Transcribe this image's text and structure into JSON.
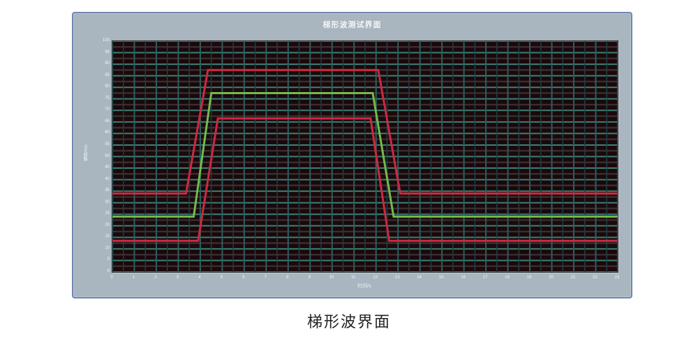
{
  "page": {
    "caption": "梯形波界面"
  },
  "panel": {
    "title": "梯形波测试界面"
  },
  "chart_data": {
    "type": "line",
    "title": "梯形波测试界面",
    "xlabel": "时间/s",
    "ylabel": "幅值/mm",
    "xlim": [
      0,
      23
    ],
    "ylim": [
      0,
      100
    ],
    "grid": true,
    "legend": "none",
    "colors": {
      "plot_background": "#1a090b",
      "grid_horizontal_major": "#3d7f79",
      "grid_vertical_major": "#2a615e",
      "grid_vertical_minor": "#1c4143",
      "grid_horizontal_mid": "#3a2d31",
      "limit_line": "#cb2943",
      "nominal_line": "#74ba4c",
      "panel_background": "#a9b5bf",
      "panel_border": "#7087b2"
    },
    "x_tick_labels": [
      "0",
      "1",
      "2",
      "3",
      "4",
      "5",
      "6",
      "7",
      "8",
      "9",
      "10",
      "11",
      "12",
      "13",
      "14",
      "15",
      "16",
      "17",
      "18",
      "19",
      "20",
      "21",
      "22",
      "23"
    ],
    "y_tick_labels": [
      "100",
      "95",
      "90",
      "85",
      "80",
      "75",
      "70",
      "65",
      "60",
      "55",
      "50",
      "45",
      "40",
      "35",
      "30",
      "25",
      "20",
      "15",
      "10",
      "5",
      "0"
    ],
    "series": [
      {
        "name": "red-upper-limit",
        "color": "#cb2943",
        "width": 3,
        "points": [
          [
            0,
            34
          ],
          [
            3.35,
            34
          ],
          [
            4.35,
            87.5
          ],
          [
            12.1,
            87.5
          ],
          [
            13.1,
            34
          ],
          [
            23,
            34
          ]
        ]
      },
      {
        "name": "green-nominal-wave",
        "color": "#74ba4c",
        "width": 3,
        "points": [
          [
            0,
            24
          ],
          [
            3.7,
            24
          ],
          [
            4.5,
            77.5
          ],
          [
            11.85,
            77.5
          ],
          [
            12.8,
            24
          ],
          [
            23,
            24
          ]
        ]
      },
      {
        "name": "red-lower-limit",
        "color": "#cb2943",
        "width": 3,
        "points": [
          [
            0,
            13.5
          ],
          [
            3.9,
            13.5
          ],
          [
            4.8,
            66.5
          ],
          [
            11.75,
            66.5
          ],
          [
            12.6,
            13.5
          ],
          [
            23,
            13.5
          ]
        ]
      }
    ]
  }
}
